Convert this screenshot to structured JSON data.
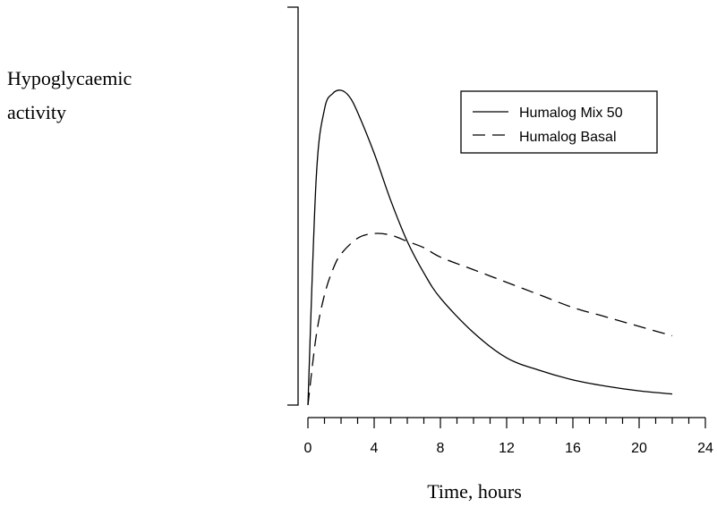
{
  "chart_data": {
    "type": "line",
    "ylabel_lines": [
      "Hypoglycaemic",
      "activity"
    ],
    "xlabel": "Time, hours",
    "xlim": [
      0,
      24
    ],
    "ylim": [
      0,
      1
    ],
    "x_ticks": [
      0,
      4,
      8,
      12,
      16,
      20,
      24
    ],
    "x_tick_labels": [
      "0",
      "4",
      "8",
      "12",
      "16",
      "20",
      "24"
    ],
    "x_minor_step": 1,
    "y_ticks_shown": false,
    "grid": false,
    "legend_position": "top-right",
    "series": [
      {
        "name": "Humalog Mix 50",
        "line_style": "solid",
        "color": "#000000",
        "x": [
          0,
          0.5,
          1,
          1.5,
          2,
          2.5,
          3,
          4,
          5,
          6,
          7,
          8,
          10,
          12,
          14,
          16,
          18,
          20,
          22
        ],
        "y": [
          0,
          0.72,
          0.94,
          0.99,
          1.0,
          0.98,
          0.93,
          0.8,
          0.65,
          0.52,
          0.42,
          0.34,
          0.23,
          0.15,
          0.11,
          0.08,
          0.06,
          0.045,
          0.035
        ]
      },
      {
        "name": "Humalog Basal",
        "line_style": "dashed",
        "color": "#000000",
        "x": [
          0,
          0.5,
          1,
          1.5,
          2,
          3,
          4,
          5,
          6,
          7,
          8,
          10,
          12,
          14,
          16,
          18,
          20,
          22
        ],
        "y": [
          0,
          0.22,
          0.35,
          0.43,
          0.48,
          0.53,
          0.545,
          0.54,
          0.52,
          0.5,
          0.47,
          0.43,
          0.39,
          0.35,
          0.31,
          0.28,
          0.25,
          0.22
        ]
      }
    ]
  }
}
